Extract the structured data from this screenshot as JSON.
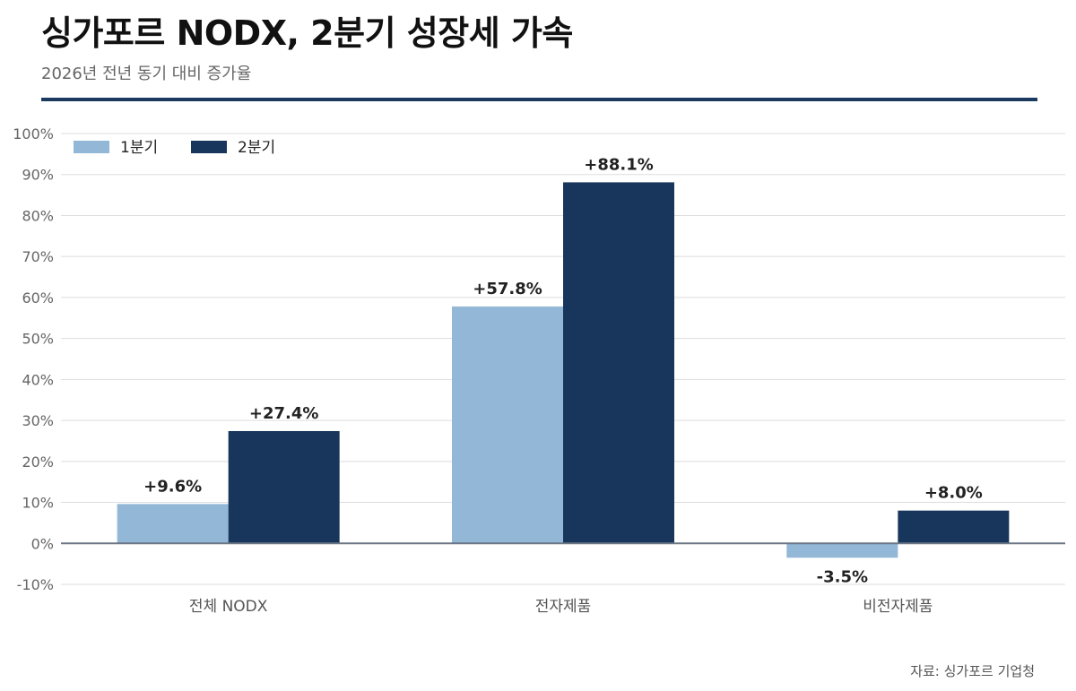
{
  "header": {
    "title": "싱가포르 NODX, 2분기 성장세 가속",
    "subtitle": "2026년 전년 동기 대비 증가율"
  },
  "footer": {
    "source": "자료: 싱가포르 기업청"
  },
  "colors": {
    "q1": "#92b7d7",
    "q2": "#18365c",
    "accent": "#1a3a5f",
    "grid": "#dddddd",
    "zero_line": "#6b7785"
  },
  "chart_data": {
    "type": "bar",
    "categories": [
      "전체 NODX",
      "전자제품",
      "비전자제품"
    ],
    "series": [
      {
        "name": "1분기",
        "values": [
          9.6,
          57.8,
          -3.5
        ],
        "labels": [
          "+9.6%",
          "+57.8%",
          "-3.5%"
        ]
      },
      {
        "name": "2분기",
        "values": [
          27.4,
          88.1,
          8.0
        ],
        "labels": [
          "+27.4%",
          "+88.1%",
          "+8.0%"
        ]
      }
    ],
    "yticks": [
      "-10%",
      "0%",
      "10%",
      "20%",
      "30%",
      "40%",
      "50%",
      "60%",
      "70%",
      "80%",
      "90%",
      "100%"
    ],
    "ylim": [
      -10,
      100
    ],
    "grid": true,
    "legend_position": "top-left"
  }
}
